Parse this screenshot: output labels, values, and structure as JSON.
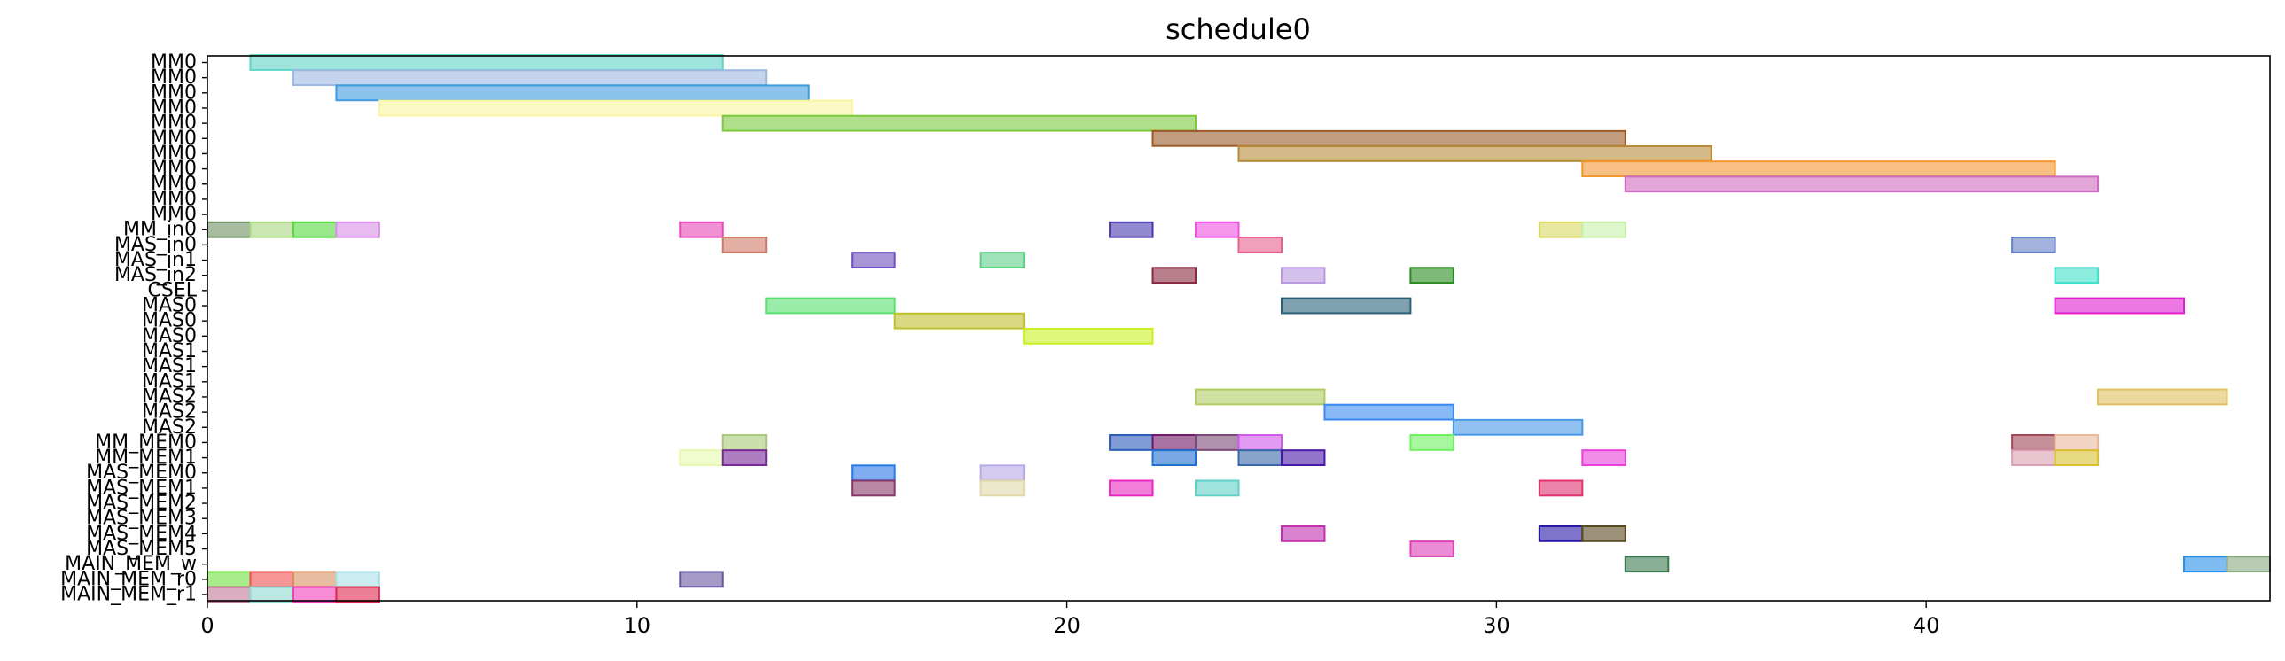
{
  "chart_data": {
    "type": "gantt",
    "title": "schedule0",
    "xlabel": "",
    "ylabel": "",
    "xlim": [
      0,
      48
    ],
    "grid": false,
    "x_ticks": [
      0,
      10,
      20,
      30,
      40
    ],
    "rows": [
      "MM0",
      "MM0",
      "MM0",
      "MM0",
      "MM0",
      "MM0",
      "MM0",
      "MM0",
      "MM0",
      "MM0",
      "MM0",
      "MM_in0",
      "MAS_in0",
      "MAS_in1",
      "MAS_in2",
      "CSEL",
      "MAS0",
      "MAS0",
      "MAS0",
      "MAS1",
      "MAS1",
      "MAS1",
      "MAS2",
      "MAS2",
      "MAS2",
      "MM_MEM0",
      "MM_MEM1",
      "MAS_MEM0",
      "MAS_MEM1",
      "MAS_MEM2",
      "MAS_MEM3",
      "MAS_MEM4",
      "MAS_MEM5",
      "MAIN_MEM_w",
      "MAIN_MEM_r0",
      "MAIN_MEM_r1"
    ],
    "tasks": [
      {
        "row": 0,
        "start": 1,
        "end": 12,
        "color": "#5fd3c6"
      },
      {
        "row": 1,
        "start": 2,
        "end": 13,
        "color": "#9bb8e0"
      },
      {
        "row": 2,
        "start": 3,
        "end": 14,
        "color": "#3f9be0"
      },
      {
        "row": 3,
        "start": 4,
        "end": 15,
        "color": "#f8f5a0"
      },
      {
        "row": 4,
        "start": 12,
        "end": 23,
        "color": "#7cc83c"
      },
      {
        "row": 5,
        "start": 22,
        "end": 33,
        "color": "#9a5a28"
      },
      {
        "row": 6,
        "start": 24,
        "end": 35,
        "color": "#b88a3a"
      },
      {
        "row": 7,
        "start": 32,
        "end": 43,
        "color": "#f2962e"
      },
      {
        "row": 8,
        "start": 33,
        "end": 44,
        "color": "#d06ac0"
      },
      {
        "row": 11,
        "start": 0,
        "end": 1,
        "color": "#6e8f60"
      },
      {
        "row": 11,
        "start": 1,
        "end": 2,
        "color": "#a8d880"
      },
      {
        "row": 11,
        "start": 2,
        "end": 3,
        "color": "#55d840"
      },
      {
        "row": 11,
        "start": 3,
        "end": 4,
        "color": "#d890e8"
      },
      {
        "row": 11,
        "start": 11,
        "end": 12,
        "color": "#e848b8"
      },
      {
        "row": 11,
        "start": 21,
        "end": 22,
        "color": "#4a3ab0"
      },
      {
        "row": 11,
        "start": 23,
        "end": 24,
        "color": "#f050e0"
      },
      {
        "row": 11,
        "start": 31,
        "end": 32,
        "color": "#d8d860"
      },
      {
        "row": 11,
        "start": 32,
        "end": 33,
        "color": "#c8f0a8"
      },
      {
        "row": 12,
        "start": 12,
        "end": 13,
        "color": "#d07868"
      },
      {
        "row": 12,
        "start": 24,
        "end": 25,
        "color": "#e86090"
      },
      {
        "row": 12,
        "start": 42,
        "end": 43,
        "color": "#6880c8"
      },
      {
        "row": 13,
        "start": 15,
        "end": 16,
        "color": "#7050c0"
      },
      {
        "row": 13,
        "start": 18,
        "end": 19,
        "color": "#60d088"
      },
      {
        "row": 14,
        "start": 22,
        "end": 23,
        "color": "#882840"
      },
      {
        "row": 14,
        "start": 25,
        "end": 26,
        "color": "#b898e0"
      },
      {
        "row": 14,
        "start": 28,
        "end": 29,
        "color": "#2a8a20"
      },
      {
        "row": 14,
        "start": 43,
        "end": 44,
        "color": "#40e0c8"
      },
      {
        "row": 16,
        "start": 13,
        "end": 16,
        "color": "#58e070"
      },
      {
        "row": 16,
        "start": 25,
        "end": 28,
        "color": "#2a6078"
      },
      {
        "row": 16,
        "start": 43,
        "end": 46,
        "color": "#e020d0"
      },
      {
        "row": 17,
        "start": 16,
        "end": 19,
        "color": "#c0c030"
      },
      {
        "row": 18,
        "start": 19,
        "end": 22,
        "color": "#c8f020"
      },
      {
        "row": 22,
        "start": 23,
        "end": 26,
        "color": "#b0cc60"
      },
      {
        "row": 22,
        "start": 44,
        "end": 47,
        "color": "#e0c060"
      },
      {
        "row": 23,
        "start": 26,
        "end": 29,
        "color": "#3888f0"
      },
      {
        "row": 24,
        "start": 29,
        "end": 32,
        "color": "#4898e8"
      },
      {
        "row": 25,
        "start": 12,
        "end": 13,
        "color": "#a8c878"
      },
      {
        "row": 25,
        "start": 21,
        "end": 22,
        "color": "#2a5cb8"
      },
      {
        "row": 25,
        "start": 22,
        "end": 23,
        "color": "#701868"
      },
      {
        "row": 25,
        "start": 23,
        "end": 24,
        "color": "#7a4878"
      },
      {
        "row": 25,
        "start": 24,
        "end": 25,
        "color": "#d058e8"
      },
      {
        "row": 25,
        "start": 28,
        "end": 29,
        "color": "#70f060"
      },
      {
        "row": 25,
        "start": 42,
        "end": 43,
        "color": "#a04858"
      },
      {
        "row": 25,
        "start": 43,
        "end": 44,
        "color": "#e8b898"
      },
      {
        "row": 26,
        "start": 11,
        "end": 12,
        "color": "#e8f8b0"
      },
      {
        "row": 26,
        "start": 12,
        "end": 13,
        "color": "#782898"
      },
      {
        "row": 26,
        "start": 22,
        "end": 23,
        "color": "#2070d0"
      },
      {
        "row": 26,
        "start": 24,
        "end": 25,
        "color": "#3868a8"
      },
      {
        "row": 26,
        "start": 25,
        "end": 26,
        "color": "#4a18a8"
      },
      {
        "row": 26,
        "start": 32,
        "end": 33,
        "color": "#e840d8"
      },
      {
        "row": 26,
        "start": 42,
        "end": 43,
        "color": "#d8a0b0"
      },
      {
        "row": 26,
        "start": 43,
        "end": 44,
        "color": "#d8c030"
      },
      {
        "row": 27,
        "start": 15,
        "end": 16,
        "color": "#2878e8"
      },
      {
        "row": 27,
        "start": 18,
        "end": 19,
        "color": "#b8a8e8"
      },
      {
        "row": 28,
        "start": 15,
        "end": 16,
        "color": "#883868"
      },
      {
        "row": 28,
        "start": 18,
        "end": 19,
        "color": "#e0d8a8"
      },
      {
        "row": 28,
        "start": 21,
        "end": 22,
        "color": "#e828c0"
      },
      {
        "row": 28,
        "start": 23,
        "end": 24,
        "color": "#60d0c8"
      },
      {
        "row": 28,
        "start": 31,
        "end": 32,
        "color": "#e03070"
      },
      {
        "row": 31,
        "start": 25,
        "end": 26,
        "color": "#c030b0"
      },
      {
        "row": 31,
        "start": 31,
        "end": 32,
        "color": "#2818a8"
      },
      {
        "row": 31,
        "start": 32,
        "end": 33,
        "color": "#5a4a20"
      },
      {
        "row": 32,
        "start": 28,
        "end": 29,
        "color": "#e040b8"
      },
      {
        "row": 33,
        "start": 33,
        "end": 34,
        "color": "#3a7a50"
      },
      {
        "row": 33,
        "start": 46,
        "end": 47,
        "color": "#2890e8"
      },
      {
        "row": 33,
        "start": 47,
        "end": 48,
        "color": "#8aa880"
      },
      {
        "row": 34,
        "start": 0,
        "end": 1,
        "color": "#70e040"
      },
      {
        "row": 34,
        "start": 1,
        "end": 2,
        "color": "#f05050"
      },
      {
        "row": 34,
        "start": 2,
        "end": 3,
        "color": "#d89060"
      },
      {
        "row": 34,
        "start": 3,
        "end": 4,
        "color": "#a8e0e8"
      },
      {
        "row": 34,
        "start": 11,
        "end": 12,
        "color": "#6858a0"
      },
      {
        "row": 35,
        "start": 0,
        "end": 1,
        "color": "#c07898"
      },
      {
        "row": 35,
        "start": 1,
        "end": 2,
        "color": "#90d8d0"
      },
      {
        "row": 35,
        "start": 2,
        "end": 3,
        "color": "#f040b8"
      },
      {
        "row": 35,
        "start": 3,
        "end": 4,
        "color": "#e02850"
      }
    ]
  }
}
